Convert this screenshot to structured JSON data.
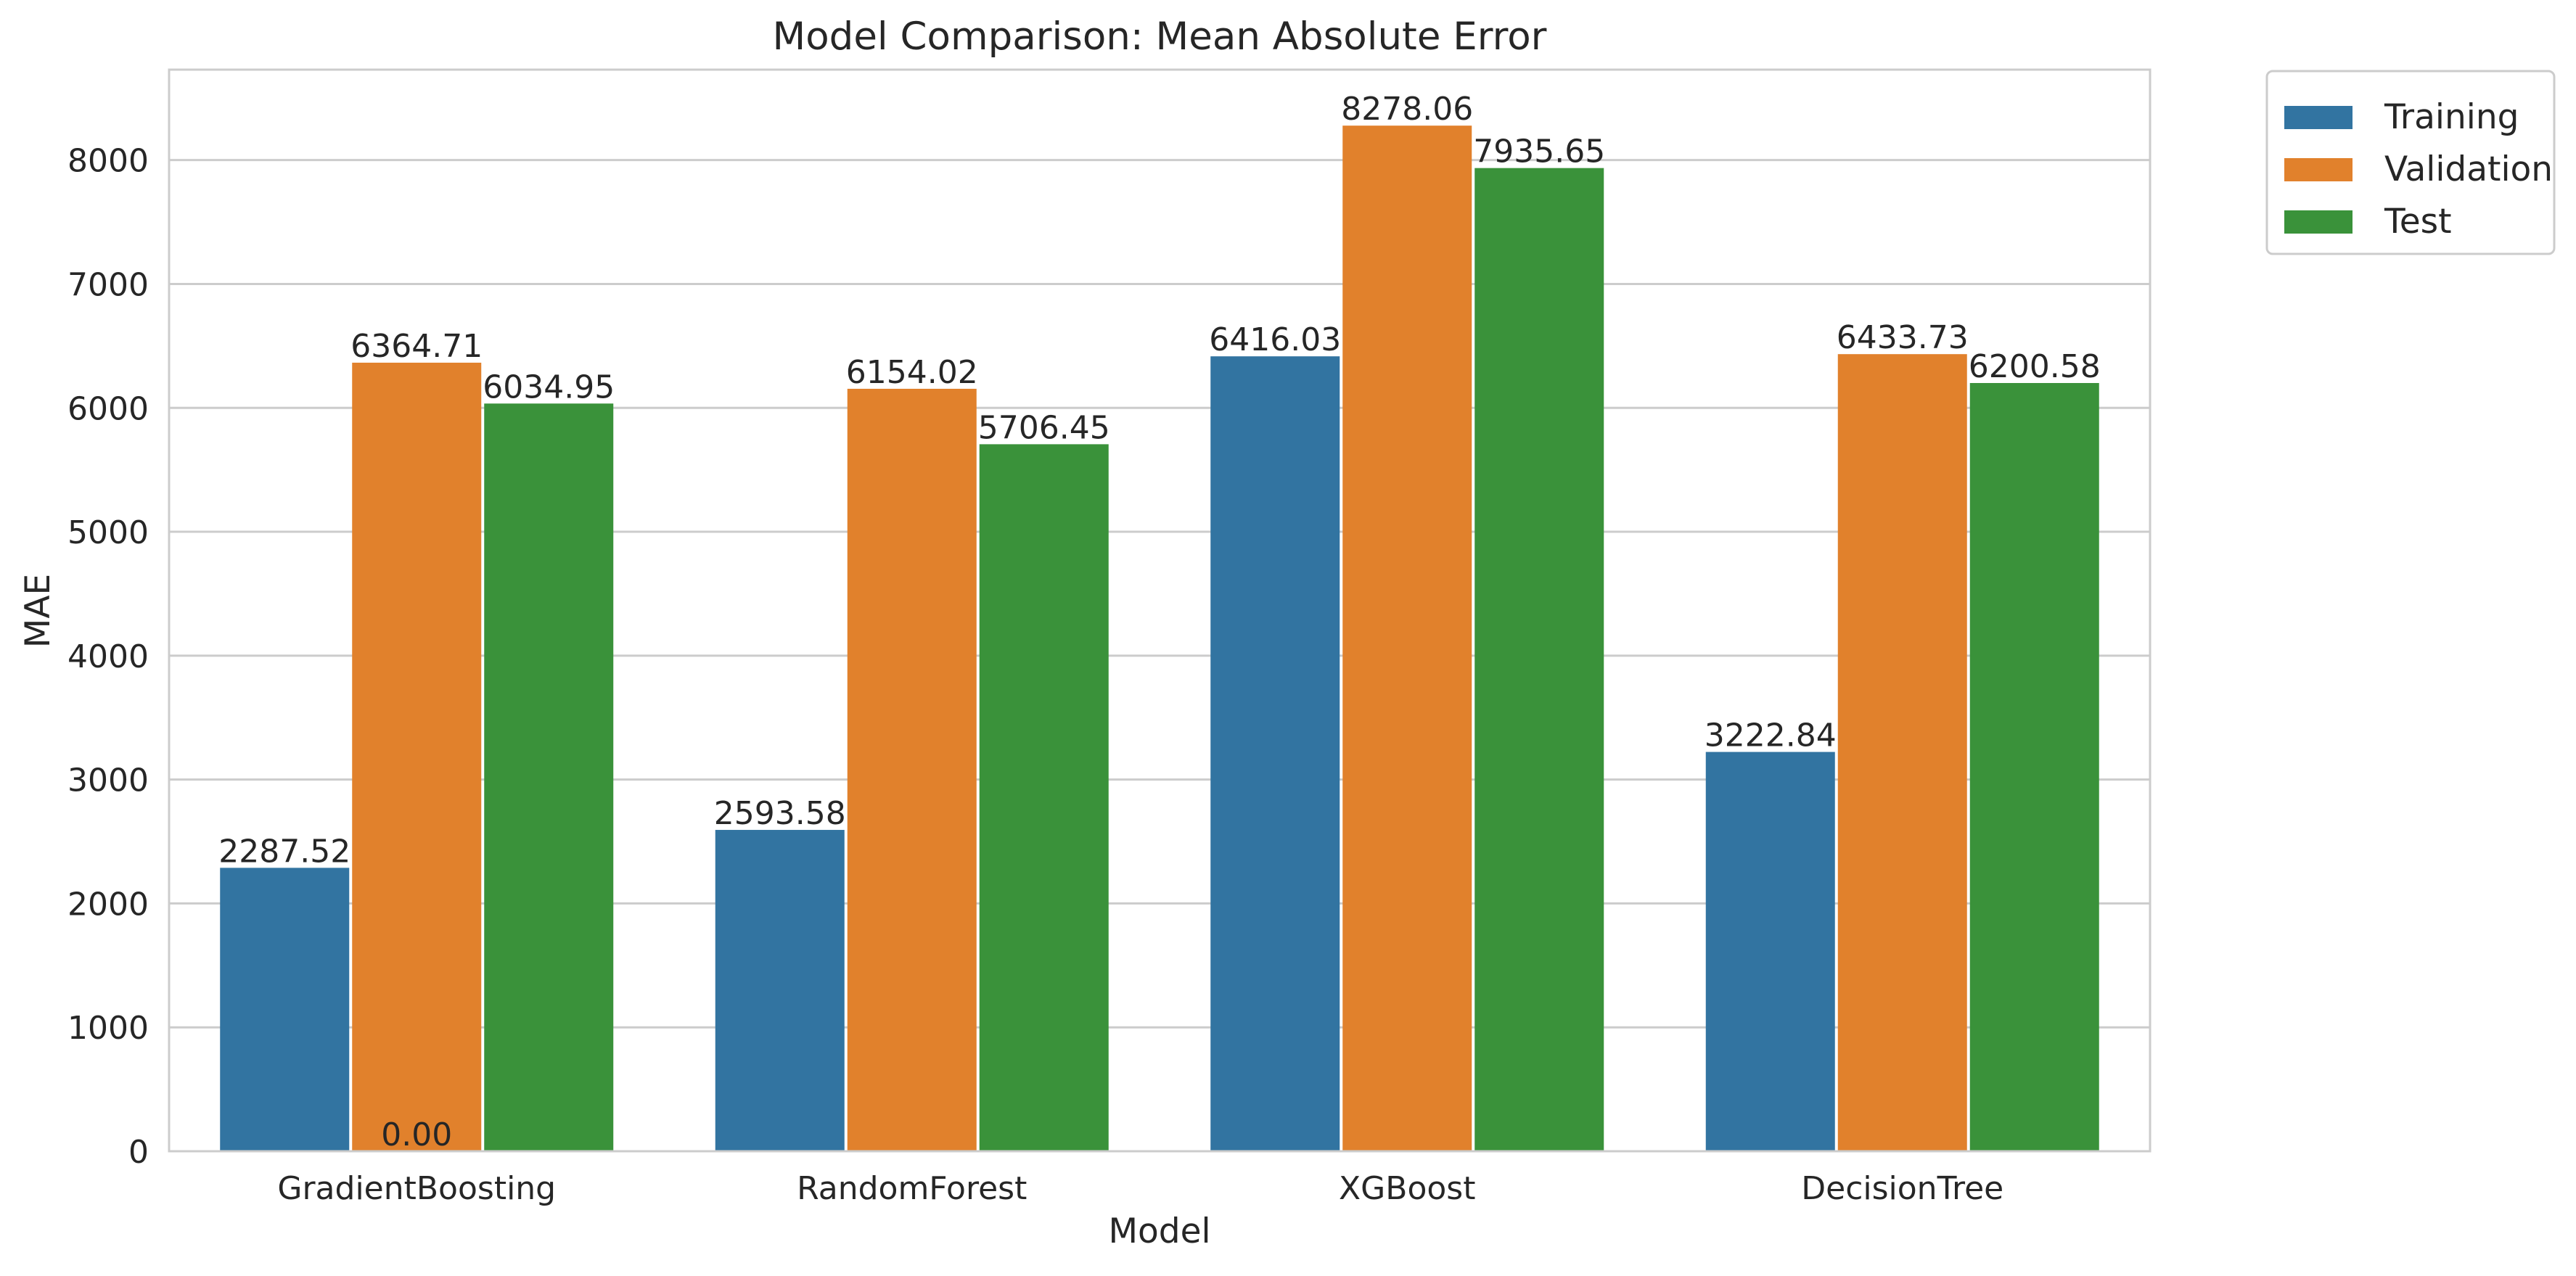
{
  "chart_data": {
    "type": "bar",
    "title": "Model Comparison: Mean Absolute Error",
    "xlabel": "Model",
    "ylabel": "MAE",
    "categories": [
      "GradientBoosting",
      "RandomForest",
      "XGBoost",
      "DecisionTree"
    ],
    "series": [
      {
        "name": "Training",
        "color": "#3274a1",
        "values": [
          2287.52,
          2593.58,
          6416.03,
          3222.84
        ]
      },
      {
        "name": "Validation",
        "color": "#e1812c",
        "values": [
          6364.71,
          6154.02,
          8278.06,
          6433.73
        ]
      },
      {
        "name": "Test",
        "color": "#3a923a",
        "values": [
          6034.95,
          5706.45,
          7935.65,
          6200.58
        ]
      }
    ],
    "value_labels": [
      [
        "2287.52",
        "2593.58",
        "6416.03",
        "3222.84"
      ],
      [
        "6364.71",
        "6154.02",
        "8278.06",
        "6433.73"
      ],
      [
        "6034.95",
        "5706.45",
        "7935.65",
        "6200.58"
      ]
    ],
    "extra_label": "0.00",
    "yticks": [
      0,
      1000,
      2000,
      3000,
      4000,
      5000,
      6000,
      7000,
      8000
    ],
    "ylim": [
      0,
      8730
    ],
    "grid": "horizontal",
    "legend_position": "upper-right-outside"
  }
}
